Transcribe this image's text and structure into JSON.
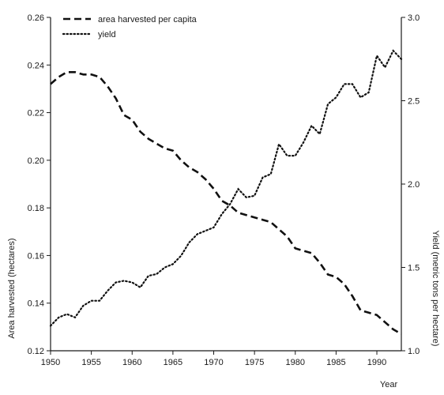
{
  "chart_data": {
    "type": "line",
    "title": "",
    "xlabel": "Year",
    "ylabel_left": "Area harvested (hectares)",
    "ylabel_right": "Yield (metric tons per hectare)",
    "xlim": [
      1950,
      1993
    ],
    "ylim_left": [
      0.12,
      0.26
    ],
    "ylim_right": [
      1.0,
      3.0
    ],
    "x_ticks": [
      1950,
      1955,
      1960,
      1965,
      1970,
      1975,
      1980,
      1985,
      1990
    ],
    "y_left_ticks": [
      "0.12",
      "0.14",
      "0.16",
      "0.18",
      "0.20",
      "0.22",
      "0.24",
      "0.26"
    ],
    "y_right_ticks": [
      "1.0",
      "1.5",
      "2.0",
      "2.5",
      "3.0"
    ],
    "grid": false,
    "legend_position": "top-left",
    "series": [
      {
        "name": "area harvested per capita",
        "axis": "left",
        "style": "dashed",
        "x": [
          1950,
          1951,
          1952,
          1953,
          1954,
          1955,
          1956,
          1957,
          1958,
          1959,
          1960,
          1961,
          1962,
          1963,
          1964,
          1965,
          1966,
          1967,
          1968,
          1969,
          1970,
          1971,
          1972,
          1973,
          1974,
          1975,
          1976,
          1977,
          1978,
          1979,
          1980,
          1981,
          1982,
          1983,
          1984,
          1985,
          1986,
          1987,
          1988,
          1989,
          1990,
          1991,
          1992,
          1993
        ],
        "values": [
          0.232,
          0.235,
          0.237,
          0.237,
          0.236,
          0.236,
          0.235,
          0.231,
          0.226,
          0.219,
          0.217,
          0.212,
          0.209,
          0.207,
          0.205,
          0.204,
          0.2,
          0.197,
          0.195,
          0.192,
          0.188,
          0.183,
          0.181,
          0.178,
          0.177,
          0.176,
          0.175,
          0.174,
          0.171,
          0.168,
          0.163,
          0.162,
          0.161,
          0.157,
          0.152,
          0.151,
          0.148,
          0.143,
          0.137,
          0.136,
          0.135,
          0.132,
          0.129,
          0.127
        ]
      },
      {
        "name": "yield",
        "axis": "right",
        "style": "dotted",
        "x": [
          1950,
          1951,
          1952,
          1953,
          1954,
          1955,
          1956,
          1957,
          1958,
          1959,
          1960,
          1961,
          1962,
          1963,
          1964,
          1965,
          1966,
          1967,
          1968,
          1969,
          1970,
          1971,
          1972,
          1973,
          1974,
          1975,
          1976,
          1977,
          1978,
          1979,
          1980,
          1981,
          1982,
          1983,
          1984,
          1985,
          1986,
          1987,
          1988,
          1989,
          1990,
          1991,
          1992,
          1993
        ],
        "values": [
          1.15,
          1.2,
          1.22,
          1.2,
          1.27,
          1.3,
          1.3,
          1.36,
          1.41,
          1.42,
          1.41,
          1.38,
          1.45,
          1.46,
          1.5,
          1.52,
          1.57,
          1.65,
          1.7,
          1.72,
          1.74,
          1.82,
          1.88,
          1.97,
          1.92,
          1.93,
          2.04,
          2.06,
          2.24,
          2.17,
          2.17,
          2.25,
          2.35,
          2.3,
          2.48,
          2.52,
          2.6,
          2.6,
          2.52,
          2.55,
          2.77,
          2.7,
          2.8,
          2.75
        ]
      }
    ]
  }
}
